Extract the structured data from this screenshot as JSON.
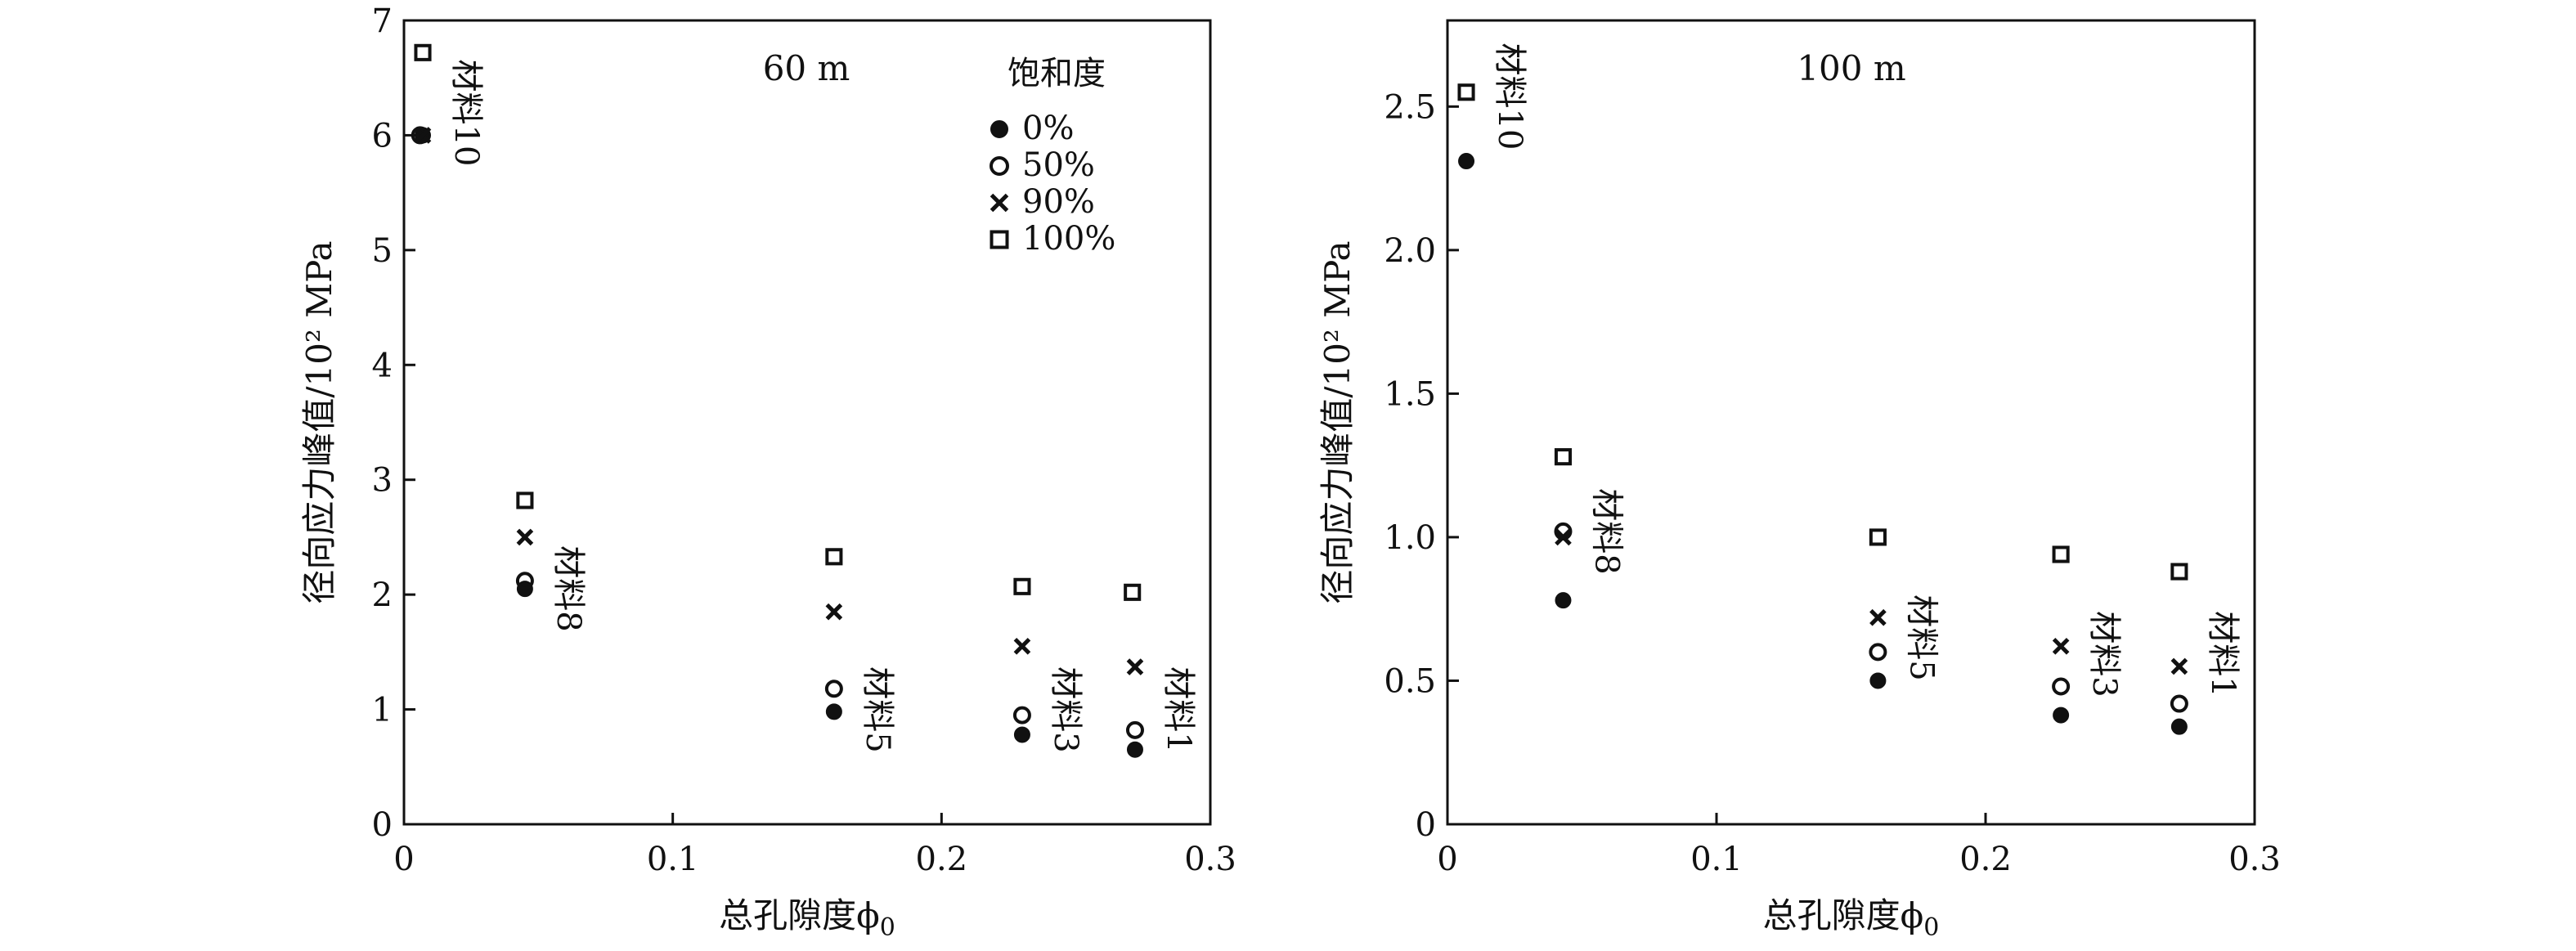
{
  "chart_data": [
    {
      "type": "scatter",
      "panel_label": "60 m",
      "xlabel": "总孔隙度ϕ",
      "xlabel_sub": "0",
      "ylabel": "径向应力峰值/10² MPa",
      "xlim": [
        0,
        0.3
      ],
      "ylim": [
        0,
        7
      ],
      "x_ticks": [
        "0",
        "0.1",
        "0.2",
        "0.3"
      ],
      "x_tick_values": [
        0,
        0.1,
        0.2,
        0.3
      ],
      "y_ticks": [
        "0",
        "1",
        "2",
        "3",
        "4",
        "5",
        "6",
        "7"
      ],
      "y_tick_values": [
        0,
        1,
        2,
        3,
        4,
        5,
        6,
        7
      ],
      "legend_title": "饱和度",
      "legend_position": "top-right",
      "series": [
        {
          "name": "0%",
          "marker": "filled-circle",
          "x": [
            0.007,
            0.045,
            0.16,
            0.23,
            0.272
          ],
          "y": [
            6.0,
            2.05,
            0.98,
            0.78,
            0.65
          ]
        },
        {
          "name": "50%",
          "marker": "open-circle",
          "x": [
            0.006,
            0.045,
            0.16,
            0.23,
            0.272
          ],
          "y": [
            6.0,
            2.12,
            1.18,
            0.95,
            0.82
          ]
        },
        {
          "name": "90%",
          "marker": "cross",
          "x": [
            0.007,
            0.045,
            0.16,
            0.23,
            0.272
          ],
          "y": [
            6.0,
            2.5,
            1.85,
            1.55,
            1.37
          ]
        },
        {
          "name": "100%",
          "marker": "open-square",
          "x": [
            0.007,
            0.045,
            0.16,
            0.23,
            0.271
          ],
          "y": [
            6.72,
            2.82,
            2.33,
            2.07,
            2.02
          ]
        }
      ],
      "material_labels": [
        {
          "text": "材料10",
          "x": 0.007
        },
        {
          "text": "材料8",
          "x": 0.045
        },
        {
          "text": "材料5",
          "x": 0.16
        },
        {
          "text": "材料3",
          "x": 0.23
        },
        {
          "text": "材料1",
          "x": 0.272
        }
      ]
    },
    {
      "type": "scatter",
      "panel_label": "100 m",
      "xlabel": "总孔隙度ϕ",
      "xlabel_sub": "0",
      "ylabel": "径向应力峰值/10² MPa",
      "xlim": [
        0,
        0.3
      ],
      "ylim": [
        0,
        2.8
      ],
      "x_ticks": [
        "0",
        "0.1",
        "0.2",
        "0.3"
      ],
      "x_tick_values": [
        0,
        0.1,
        0.2,
        0.3
      ],
      "y_ticks": [
        "0",
        "0.5",
        "1.0",
        "1.5",
        "2.0",
        "2.5"
      ],
      "y_tick_values": [
        0,
        0.5,
        1.0,
        1.5,
        2.0,
        2.5
      ],
      "series": [
        {
          "name": "0%",
          "marker": "filled-circle",
          "x": [
            0.007,
            0.043,
            0.16,
            0.228,
            0.272
          ],
          "y": [
            2.31,
            0.78,
            0.5,
            0.38,
            0.34
          ]
        },
        {
          "name": "50%",
          "marker": "open-circle",
          "x": [
            0.043,
            0.16,
            0.228,
            0.272
          ],
          "y": [
            1.02,
            0.6,
            0.48,
            0.42
          ]
        },
        {
          "name": "90%",
          "marker": "cross",
          "x": [
            0.043,
            0.16,
            0.228,
            0.272
          ],
          "y": [
            1.0,
            0.72,
            0.62,
            0.55
          ]
        },
        {
          "name": "100%",
          "marker": "open-square",
          "x": [
            0.007,
            0.043,
            0.16,
            0.228,
            0.272
          ],
          "y": [
            2.55,
            1.28,
            1.0,
            0.94,
            0.88
          ]
        }
      ],
      "material_labels": [
        {
          "text": "材料10",
          "x": 0.007
        },
        {
          "text": "材料8",
          "x": 0.043
        },
        {
          "text": "材料5",
          "x": 0.16
        },
        {
          "text": "材料3",
          "x": 0.228
        },
        {
          "text": "材料1",
          "x": 0.272
        }
      ]
    }
  ]
}
